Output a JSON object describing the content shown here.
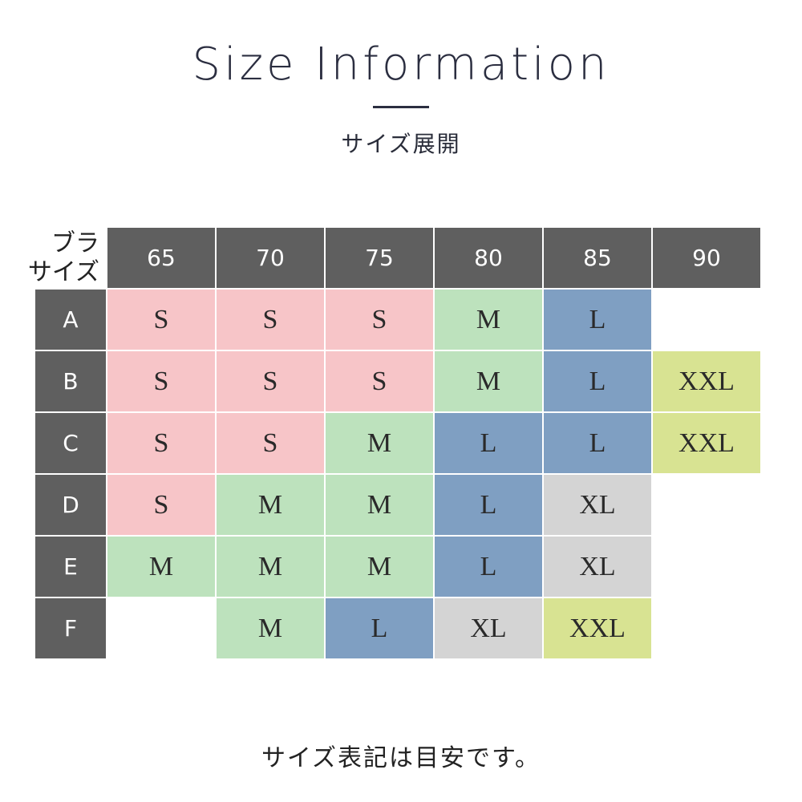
{
  "header": {
    "title": "Size Information",
    "subtitle": "サイズ展開"
  },
  "table": {
    "corner_line1": "ブラ",
    "corner_line2": "サイズ",
    "columns": [
      "65",
      "70",
      "75",
      "80",
      "85",
      "90"
    ],
    "rows": [
      {
        "label": "A",
        "cells": [
          "S",
          "S",
          "S",
          "M",
          "L",
          ""
        ]
      },
      {
        "label": "B",
        "cells": [
          "S",
          "S",
          "S",
          "M",
          "L",
          "XXL"
        ]
      },
      {
        "label": "C",
        "cells": [
          "S",
          "S",
          "M",
          "L",
          "L",
          "XXL"
        ]
      },
      {
        "label": "D",
        "cells": [
          "S",
          "M",
          "M",
          "L",
          "XL",
          ""
        ]
      },
      {
        "label": "E",
        "cells": [
          "M",
          "M",
          "M",
          "L",
          "XL",
          ""
        ]
      },
      {
        "label": "F",
        "cells": [
          "",
          "M",
          "L",
          "XL",
          "XXL",
          ""
        ]
      }
    ],
    "size_colors": {
      "S": "#f7c5c8",
      "M": "#bde2bd",
      "L": "#7f9fc2",
      "XL": "#d4d4d4",
      "XXL": "#d8e392"
    },
    "header_color": "#5f5f5f"
  },
  "footer": {
    "note": "サイズ表記は目安です。"
  }
}
